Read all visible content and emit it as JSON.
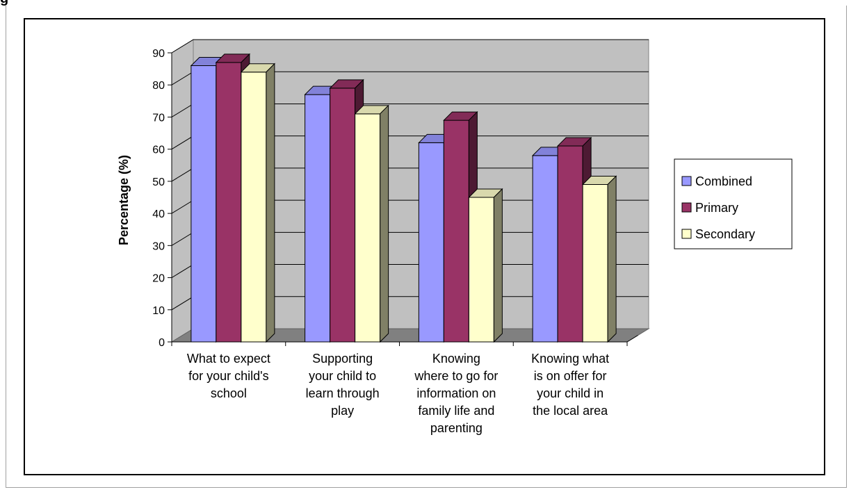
{
  "page": {
    "title": "g"
  },
  "chart_data": {
    "type": "bar",
    "categories": [
      [
        "What to expect",
        "for your child's",
        "school"
      ],
      [
        "Supporting",
        "your child to",
        "learn through",
        "play"
      ],
      [
        "Knowing",
        "where to go for",
        "information on",
        "family life and",
        "parenting"
      ],
      [
        "Knowing what",
        "is on offer for",
        "your child in",
        "the local area"
      ]
    ],
    "series": [
      {
        "name": "Combined",
        "values": [
          86,
          77,
          62,
          58
        ],
        "color": "#9999ff"
      },
      {
        "name": "Primary",
        "values": [
          87,
          79,
          69,
          61
        ],
        "color": "#993366"
      },
      {
        "name": "Secondary",
        "values": [
          84,
          71,
          45,
          49
        ],
        "color": "#ffffcc"
      }
    ],
    "ylabel": "Percentage (%)",
    "xlabel": "",
    "ylim": [
      0,
      90
    ],
    "yticks": [
      0,
      10,
      20,
      30,
      40,
      50,
      60,
      70,
      80,
      90
    ],
    "grid": true,
    "legend": "right",
    "wall_color": "#c0c0c0",
    "floor_color": "#808080"
  }
}
